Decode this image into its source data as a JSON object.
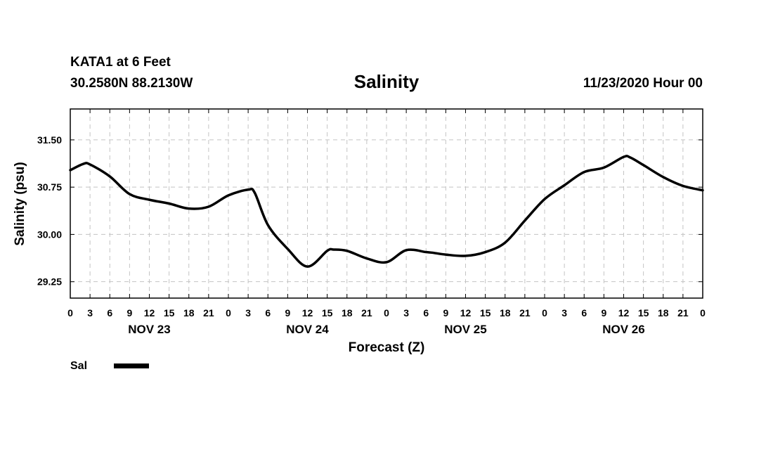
{
  "header": {
    "station": "KATA1 at 6 Feet",
    "coords": "30.2580N 88.2130W",
    "datetime": "11/23/2020 Hour 00"
  },
  "chart_data": {
    "type": "line",
    "title": "Salinity",
    "xlabel": "Forecast (Z)",
    "ylabel": "Salinity (psu)",
    "grid": true,
    "ylim": [
      28.99,
      31.99
    ],
    "xlim": [
      0,
      96
    ],
    "yticks": [
      29.25,
      30.0,
      30.75,
      31.5
    ],
    "ytick_labels": [
      "29.25",
      "30.00",
      "30.75",
      "31.50"
    ],
    "xtick_hours": [
      0,
      3,
      6,
      9,
      12,
      15,
      18,
      21,
      24,
      27,
      30,
      33,
      36,
      39,
      42,
      45,
      48,
      51,
      54,
      57,
      60,
      63,
      66,
      69,
      72,
      75,
      78,
      81,
      84,
      87,
      90,
      93,
      96
    ],
    "xtick_labels": [
      "0",
      "3",
      "6",
      "9",
      "12",
      "15",
      "18",
      "21",
      "0",
      "3",
      "6",
      "9",
      "12",
      "15",
      "18",
      "21",
      "0",
      "3",
      "6",
      "9",
      "12",
      "15",
      "18",
      "21",
      "0",
      "3",
      "6",
      "9",
      "12",
      "15",
      "18",
      "21",
      "0"
    ],
    "day_labels": [
      {
        "label": "NOV 23",
        "hour": 12
      },
      {
        "label": "NOV 24",
        "hour": 36
      },
      {
        "label": "NOV 25",
        "hour": 60
      },
      {
        "label": "NOV 26",
        "hour": 84
      }
    ],
    "series": [
      {
        "name": "Sal",
        "color": "#000000",
        "x": [
          0,
          2,
          3,
          6,
          9,
          12,
          15,
          18,
          21,
          24,
          27,
          28,
          30,
          33,
          36,
          39,
          40,
          42,
          45,
          48,
          51,
          54,
          55,
          57,
          60,
          63,
          66,
          69,
          72,
          75,
          78,
          81,
          84,
          85,
          87,
          90,
          93,
          96
        ],
        "y": [
          31.02,
          31.12,
          31.11,
          30.92,
          30.64,
          30.55,
          30.49,
          30.41,
          30.44,
          30.62,
          30.71,
          30.66,
          30.15,
          29.77,
          29.49,
          29.74,
          29.76,
          29.74,
          29.62,
          29.56,
          29.75,
          29.72,
          29.71,
          29.68,
          29.66,
          29.72,
          29.87,
          30.22,
          30.56,
          30.78,
          30.99,
          31.06,
          31.23,
          31.22,
          31.1,
          30.91,
          30.77,
          30.7
        ]
      }
    ],
    "legend": [
      {
        "label": "Sal",
        "color": "#000000"
      }
    ]
  }
}
